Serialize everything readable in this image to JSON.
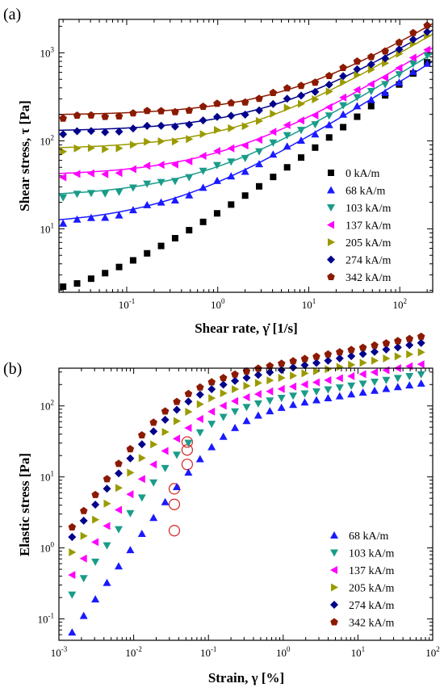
{
  "figure": {
    "panels": [
      "(a)",
      "(b)"
    ]
  },
  "chart_data": [
    {
      "panel": "(a)",
      "type": "scatter",
      "xlabel": "Shear rate, γ̇ [1/s]",
      "ylabel": "Shear stress, τ  [Pa]",
      "x_scale": "log",
      "y_scale": "log",
      "xlim": [
        0.018,
        230
      ],
      "ylim": [
        1.9,
        2400
      ],
      "x_ticks": [
        {
          "value": 0.1,
          "mantissa": "10",
          "exp": "-1"
        },
        {
          "value": 1,
          "mantissa": "10",
          "exp": "0"
        },
        {
          "value": 10,
          "mantissa": "10",
          "exp": "1"
        },
        {
          "value": 100,
          "mantissa": "10",
          "exp": "2"
        }
      ],
      "y_ticks": [
        {
          "value": 10,
          "mantissa": "10",
          "exp": "1"
        },
        {
          "value": 100,
          "mantissa": "10",
          "exp": "2"
        },
        {
          "value": 1000,
          "mantissa": "10",
          "exp": "3"
        }
      ],
      "grid": false,
      "legend_position": "bottom-right",
      "fit_curves": true,
      "series": [
        {
          "name": "0 kA/m",
          "marker": "square",
          "color": "#000000",
          "start": 2.2,
          "end": 780,
          "curve": "power"
        },
        {
          "name": "68 kA/m",
          "marker": "triangle-up",
          "color": "#1a1aff",
          "start": 12.5,
          "end": 780,
          "tau_y": 11,
          "K": 23,
          "n": 0.65
        },
        {
          "name": "103 kA/m",
          "marker": "triangle-down",
          "color": "#1a9c8a",
          "start": 25,
          "end": 950,
          "tau_y": 23,
          "K": 28,
          "n": 0.65
        },
        {
          "name": "137 kA/m",
          "marker": "triangle-left",
          "color": "#ff00ff",
          "start": 42,
          "end": 1150,
          "tau_y": 40,
          "K": 34,
          "n": 0.64
        },
        {
          "name": "205 kA/m",
          "marker": "triangle-right",
          "color": "#9a9a00",
          "start": 82,
          "end": 1650,
          "tau_y": 80,
          "K": 48,
          "n": 0.64
        },
        {
          "name": "274 kA/m",
          "marker": "diamond",
          "color": "#00008b",
          "start": 130,
          "end": 1850,
          "tau_y": 128,
          "K": 52,
          "n": 0.64
        },
        {
          "name": "342 kA/m",
          "marker": "pentagon",
          "color": "#8b1a00",
          "start": 165,
          "end": 2100,
          "tau_y": 195,
          "K": 60,
          "n": 0.64
        }
      ]
    },
    {
      "panel": "(b)",
      "type": "scatter",
      "xlabel": "Strain, γ  [%]",
      "ylabel": "Elastic stress [Pa]",
      "x_scale": "log",
      "y_scale": "log",
      "xlim": [
        0.001,
        100
      ],
      "ylim": [
        0.05,
        340
      ],
      "x_ticks": [
        {
          "value": 0.001,
          "mantissa": "10",
          "exp": "-3"
        },
        {
          "value": 0.01,
          "mantissa": "10",
          "exp": "-2"
        },
        {
          "value": 0.1,
          "mantissa": "10",
          "exp": "-1"
        },
        {
          "value": 1,
          "mantissa": "10",
          "exp": "0"
        },
        {
          "value": 10,
          "mantissa": "10",
          "exp": "1"
        },
        {
          "value": 100,
          "mantissa": "10",
          "exp": "2"
        }
      ],
      "y_ticks": [
        {
          "value": 0.1,
          "mantissa": "10",
          "exp": "-1"
        },
        {
          "value": 1,
          "mantissa": "10",
          "exp": "0"
        },
        {
          "value": 10,
          "mantissa": "10",
          "exp": "1"
        },
        {
          "value": 100,
          "mantissa": "10",
          "exp": "2"
        }
      ],
      "grid": false,
      "legend_position": "bottom-right",
      "series": [
        {
          "name": "68 kA/m",
          "marker": "triangle-up",
          "color": "#1a1aff",
          "start_x": 0.0015,
          "start": 0.065,
          "a": 35,
          "b": 0.0015,
          "n": 0.16,
          "yield_x": 0.035,
          "yield_y": 1.75
        },
        {
          "name": "103 kA/m",
          "marker": "triangle-down",
          "color": "#1a9c8a",
          "start_x": 0.0015,
          "start": 0.22,
          "a": 45,
          "b": 0.0015,
          "n": 0.17,
          "yield_x": 0.035,
          "yield_y": 4.1
        },
        {
          "name": "137 kA/m",
          "marker": "triangle-left",
          "color": "#ff00ff",
          "start_x": 0.0015,
          "start": 0.42,
          "a": 60,
          "b": 0.0015,
          "n": 0.18,
          "yield_x": 0.035,
          "yield_y": 6.8
        },
        {
          "name": "205 kA/m",
          "marker": "triangle-right",
          "color": "#9a9a00",
          "start_x": 0.0015,
          "start": 0.88,
          "a": 85,
          "b": 0.0015,
          "n": 0.19,
          "yield_x": 0.052,
          "yield_y": 15
        },
        {
          "name": "274 kA/m",
          "marker": "diamond",
          "color": "#00008b",
          "start_x": 0.0015,
          "start": 1.45,
          "a": 110,
          "b": 0.0015,
          "n": 0.2,
          "yield_x": 0.052,
          "yield_y": 24
        },
        {
          "name": "342 kA/m",
          "marker": "pentagon",
          "color": "#8b1a00",
          "start_x": 0.0015,
          "start": 2.0,
          "a": 135,
          "b": 0.0015,
          "n": 0.2,
          "yield_x": 0.052,
          "yield_y": 31
        }
      ]
    }
  ]
}
